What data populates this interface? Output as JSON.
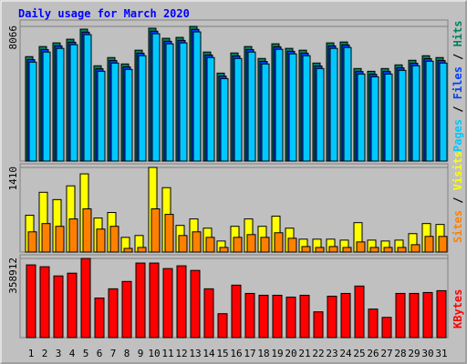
{
  "title": "Daily usage for March 2020",
  "chart_data": [
    {
      "type": "bar",
      "series": [
        {
          "name": "Hits",
          "color": "#00805c",
          "values": [
            6255,
            6859,
            7078,
            7298,
            7902,
            5707,
            6200,
            5817,
            6640,
            7956,
            7353,
            7408,
            8066,
            6530,
            5268,
            6475,
            6859,
            6146,
            7024,
            6750,
            6640,
            5871,
            7078,
            7133,
            5542,
            5377,
            5542,
            5761,
            6036,
            6310,
            6200
          ]
        },
        {
          "name": "Files",
          "color": "#0040ff",
          "values": [
            6075,
            6679,
            6898,
            7118,
            7722,
            5527,
            6020,
            5637,
            6460,
            7776,
            7173,
            7228,
            7886,
            6350,
            5088,
            6295,
            6679,
            5966,
            6844,
            6570,
            6460,
            5691,
            6898,
            6953,
            5362,
            5197,
            5362,
            5581,
            5856,
            6130,
            6020
          ]
        },
        {
          "name": "Pages",
          "color": "#00c8ff",
          "values": [
            5925,
            6529,
            6748,
            6968,
            7572,
            5377,
            5870,
            5487,
            6310,
            7626,
            7023,
            7078,
            7736,
            6200,
            4938,
            6145,
            6529,
            5816,
            6694,
            6420,
            6310,
            5541,
            6748,
            6803,
            5212,
            5047,
            5212,
            5431,
            5706,
            5980,
            5870
          ]
        }
      ],
      "legend_separator": " / ",
      "ylim": [
        0,
        8066
      ],
      "yticks": [
        8066
      ]
    },
    {
      "type": "bar",
      "series": [
        {
          "name": "Visits",
          "color": "#ffff00",
          "values": [
            613,
            996,
            874,
            1103,
            1303,
            567,
            659,
            245,
            276,
            1410,
            1073,
            444,
            552,
            398,
            184,
            429,
            552,
            429,
            598,
            398,
            215,
            215,
            215,
            199,
            490,
            199,
            184,
            199,
            307,
            475,
            460
          ]
        },
        {
          "name": "Sites",
          "color": "#ff8000",
          "values": [
            337,
            475,
            429,
            552,
            720,
            383,
            429,
            61,
            77,
            720,
            628,
            276,
            337,
            245,
            77,
            245,
            291,
            245,
            322,
            230,
            92,
            77,
            92,
            77,
            169,
            77,
            77,
            77,
            123,
            261,
            261
          ]
        }
      ],
      "legend_separator": " / ",
      "ylim": [
        0,
        1410
      ],
      "yticks": [
        1410
      ]
    },
    {
      "type": "bar",
      "categories": [
        "1",
        "2",
        "3",
        "4",
        "5",
        "6",
        "7",
        "8",
        "9",
        "10",
        "11",
        "12",
        "13",
        "14",
        "15",
        "16",
        "17",
        "18",
        "19",
        "20",
        "21",
        "22",
        "23",
        "24",
        "25",
        "26",
        "27",
        "28",
        "29",
        "30",
        "31"
      ],
      "category_colors": [
        "#00805c",
        "#000000",
        "#000000",
        "#000000",
        "#000000",
        "#000000",
        "#00805c",
        "#00805c",
        "#000000",
        "#000000",
        "#000000",
        "#000000",
        "#000000",
        "#00805c",
        "#00805c",
        "#000000",
        "#000000",
        "#000000",
        "#000000",
        "#000000",
        "#00805c",
        "#00805c",
        "#000000",
        "#000000",
        "#000000",
        "#000000",
        "#000000",
        "#00805c",
        "#00805c",
        "#000000",
        "#000000"
      ],
      "series": [
        {
          "name": "KBytes",
          "color": "#ff0000",
          "values": [
            329700,
            321350,
            279620,
            292140,
            358912,
            179460,
            221190,
            254580,
            338050,
            338050,
            313010,
            325530,
            304660,
            221190,
            108510,
            237890,
            200330,
            191980,
            191980,
            183630,
            191980,
            116860,
            187810,
            200330,
            233710,
            129380,
            91820,
            200330,
            200330,
            204500,
            212850
          ]
        }
      ],
      "ylim": [
        0,
        358912
      ],
      "yticks": [
        358912
      ]
    }
  ]
}
